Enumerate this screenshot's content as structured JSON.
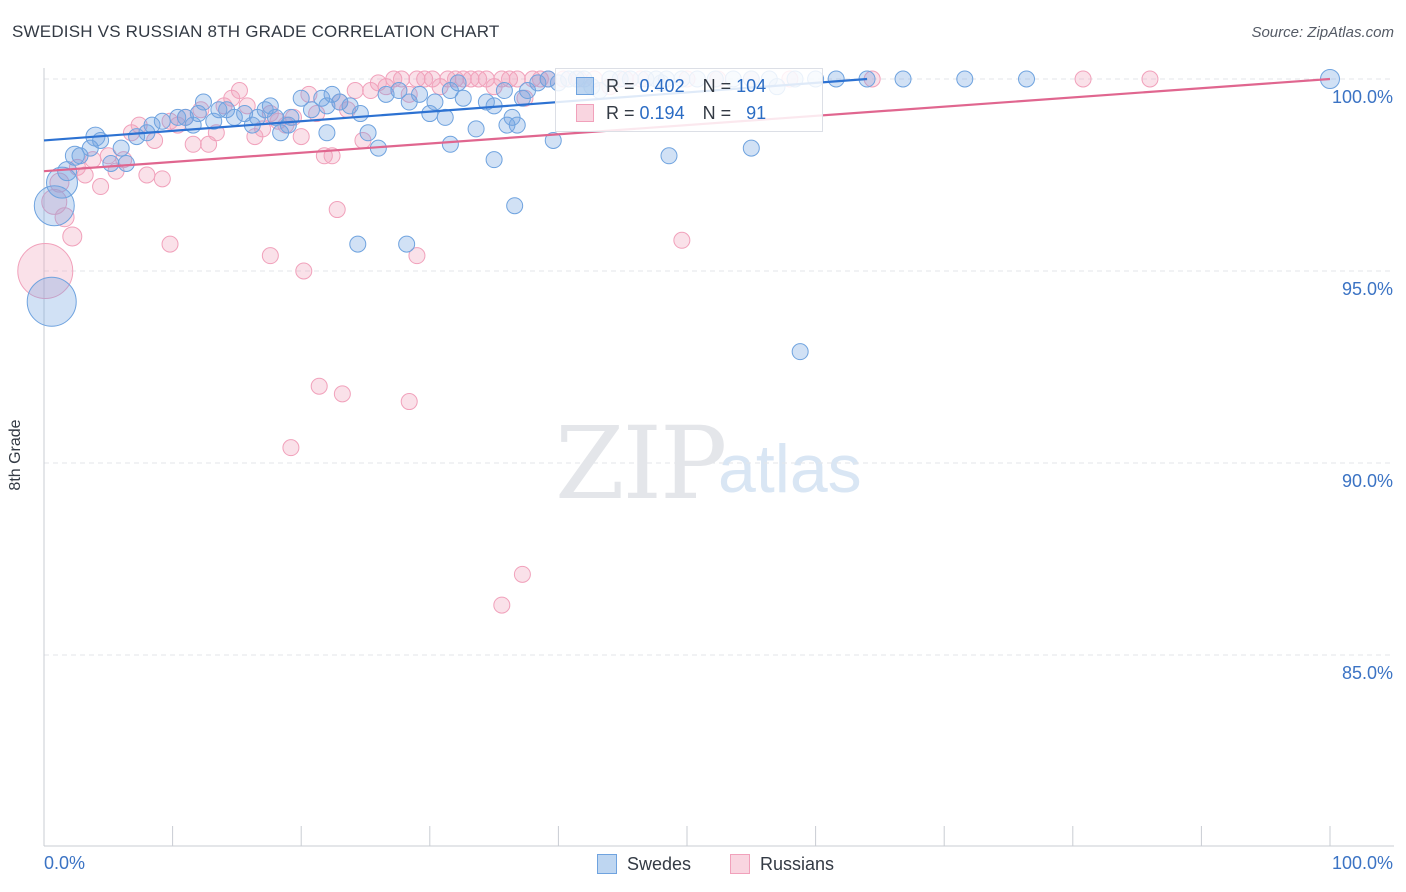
{
  "title": "SWEDISH VS RUSSIAN 8TH GRADE CORRELATION CHART",
  "source": "Source: ZipAtlas.com",
  "watermark": {
    "zip": "ZIP",
    "atlas": "atlas"
  },
  "colors": {
    "swedes": "#6fa3df",
    "russians": "#f1a1bb",
    "swedes_line": "#2d72d2",
    "russians_line": "#e0668f",
    "tick_label": "#3b73c4",
    "grid": "#e3e5ea"
  },
  "legend": {
    "swedes": {
      "r_label": "R =",
      "r_value": "0.402",
      "n_label": "N =",
      "n_value": "104"
    },
    "russians": {
      "r_label": "R =",
      "r_value": "0.194",
      "n_label": "N =",
      "n_value": "91"
    }
  },
  "bottom_legend": {
    "swedes": "Swedes",
    "russians": "Russians"
  },
  "chart_data": {
    "type": "scatter",
    "title": "SWEDISH VS RUSSIAN 8TH GRADE CORRELATION CHART",
    "xlabel": "",
    "ylabel": "8th Grade",
    "xlim": [
      0,
      100
    ],
    "ylim": [
      80.5,
      100.7
    ],
    "x_tick_labels": [
      "0.0%",
      "100.0%"
    ],
    "y_ticks": [
      100,
      95,
      90,
      85
    ],
    "y_tick_labels": [
      "100.0%",
      "95.0%",
      "90.0%",
      "85.0%"
    ],
    "grid": true,
    "legend_position": "top-center",
    "series": [
      {
        "name": "Swedes",
        "trend": [
          [
            0,
            98.4
          ],
          [
            64,
            100.0
          ]
        ],
        "points": [
          [
            0.6,
            94.2,
            1
          ],
          [
            0.8,
            96.7,
            0.85
          ],
          [
            1.4,
            97.3,
            0.7
          ],
          [
            1.8,
            97.6,
            0.5
          ],
          [
            2.4,
            98.0,
            0.5
          ],
          [
            2.8,
            98.0,
            0.45
          ],
          [
            3.6,
            98.2,
            0.45
          ],
          [
            4.0,
            98.5,
            0.5
          ],
          [
            4.4,
            98.4,
            0.45
          ],
          [
            5.2,
            97.8,
            0.45
          ],
          [
            6.0,
            98.2,
            0.45
          ],
          [
            6.4,
            97.8,
            0.45
          ],
          [
            7.2,
            98.5,
            0.45
          ],
          [
            8.0,
            98.6,
            0.45
          ],
          [
            8.4,
            98.8,
            0.45
          ],
          [
            9.2,
            98.9,
            0.45
          ],
          [
            10.4,
            99.0,
            0.45
          ],
          [
            11.0,
            99.0,
            0.45
          ],
          [
            11.6,
            98.8,
            0.45
          ],
          [
            12.0,
            99.1,
            0.45
          ],
          [
            12.4,
            99.4,
            0.45
          ],
          [
            13.2,
            98.9,
            0.45
          ],
          [
            13.6,
            99.2,
            0.45
          ],
          [
            14.2,
            99.2,
            0.45
          ],
          [
            14.8,
            99.0,
            0.45
          ],
          [
            15.6,
            99.1,
            0.45
          ],
          [
            16.2,
            98.8,
            0.45
          ],
          [
            16.6,
            99.0,
            0.45
          ],
          [
            17.2,
            99.2,
            0.45
          ],
          [
            17.6,
            99.3,
            0.45
          ],
          [
            18.0,
            99.0,
            0.45
          ],
          [
            18.4,
            98.6,
            0.45
          ],
          [
            19.2,
            99.0,
            0.45
          ],
          [
            20.0,
            99.5,
            0.45
          ],
          [
            20.8,
            99.2,
            0.45
          ],
          [
            21.6,
            99.5,
            0.45
          ],
          [
            22.0,
            99.3,
            0.45
          ],
          [
            22.4,
            99.6,
            0.45
          ],
          [
            23.0,
            99.4,
            0.45
          ],
          [
            23.8,
            99.3,
            0.45
          ],
          [
            24.6,
            99.1,
            0.45
          ],
          [
            25.2,
            98.6,
            0.45
          ],
          [
            26.6,
            99.6,
            0.45
          ],
          [
            27.6,
            99.7,
            0.45
          ],
          [
            28.4,
            99.4,
            0.45
          ],
          [
            29.2,
            99.6,
            0.45
          ],
          [
            30.4,
            99.4,
            0.45
          ],
          [
            31.2,
            99.0,
            0.45
          ],
          [
            31.6,
            99.7,
            0.45
          ],
          [
            32.2,
            99.9,
            0.45
          ],
          [
            32.6,
            99.5,
            0.45
          ],
          [
            33.6,
            98.7,
            0.45
          ],
          [
            34.4,
            99.4,
            0.45
          ],
          [
            35.0,
            99.3,
            0.45
          ],
          [
            35.8,
            99.7,
            0.45
          ],
          [
            36.4,
            99.0,
            0.45
          ],
          [
            36.8,
            98.8,
            0.45
          ],
          [
            37.2,
            99.5,
            0.45
          ],
          [
            37.6,
            99.7,
            0.45
          ],
          [
            38.4,
            99.9,
            0.45
          ],
          [
            39.2,
            100.0,
            0.45
          ],
          [
            40.0,
            99.9,
            0.45
          ],
          [
            40.8,
            100.0,
            0.45
          ],
          [
            41.4,
            100.0,
            0.45
          ],
          [
            42.0,
            100.0,
            0.45
          ],
          [
            42.6,
            99.8,
            0.45
          ],
          [
            43.2,
            99.7,
            0.45
          ],
          [
            44.0,
            100.0,
            0.45
          ],
          [
            44.8,
            100.0,
            0.45
          ],
          [
            45.6,
            100.0,
            0.45
          ],
          [
            46.8,
            100.0,
            0.45
          ],
          [
            47.6,
            100.0,
            0.45
          ],
          [
            48.0,
            99.9,
            0.45
          ],
          [
            48.4,
            100.0,
            0.45
          ],
          [
            49.6,
            100.0,
            0.45
          ],
          [
            50.8,
            100.0,
            0.45
          ],
          [
            52.2,
            100.0,
            0.45
          ],
          [
            53.6,
            100.0,
            0.45
          ],
          [
            55.0,
            100.0,
            0.45
          ],
          [
            56.4,
            100.0,
            0.45
          ],
          [
            57.0,
            99.8,
            0.45
          ],
          [
            58.4,
            100.0,
            0.45
          ],
          [
            60.0,
            100.0,
            0.45
          ],
          [
            61.6,
            100.0,
            0.45
          ],
          [
            64.0,
            100.0,
            0.45
          ],
          [
            66.8,
            100.0,
            0.45
          ],
          [
            71.6,
            100.0,
            0.45
          ],
          [
            76.4,
            100.0,
            0.45
          ],
          [
            100.0,
            100.0,
            0.5
          ],
          [
            36.0,
            98.8,
            0.45
          ],
          [
            31.6,
            98.3,
            0.45
          ],
          [
            35.0,
            97.9,
            0.45
          ],
          [
            22.0,
            98.6,
            0.45
          ],
          [
            24.4,
            95.7,
            0.45
          ],
          [
            28.2,
            95.7,
            0.45
          ],
          [
            36.6,
            96.7,
            0.45
          ],
          [
            39.6,
            98.4,
            0.45
          ],
          [
            48.6,
            98.0,
            0.45
          ],
          [
            55.0,
            98.2,
            0.45
          ],
          [
            58.8,
            92.9,
            0.45
          ],
          [
            19.0,
            98.8,
            0.45
          ],
          [
            26.0,
            98.2,
            0.45
          ],
          [
            30.0,
            99.1,
            0.45
          ]
        ]
      },
      {
        "name": "Russians",
        "trend": [
          [
            0,
            97.6
          ],
          [
            100,
            100.0
          ]
        ],
        "points": [
          [
            0.1,
            95.0,
            1.1
          ],
          [
            0.8,
            96.8,
            0.6
          ],
          [
            1.6,
            96.4,
            0.5
          ],
          [
            2.2,
            95.9,
            0.5
          ],
          [
            1.2,
            97.3,
            0.5
          ],
          [
            2.6,
            97.7,
            0.45
          ],
          [
            3.2,
            97.5,
            0.45
          ],
          [
            3.8,
            97.9,
            0.45
          ],
          [
            4.4,
            97.2,
            0.45
          ],
          [
            5.0,
            98.0,
            0.45
          ],
          [
            5.6,
            97.6,
            0.45
          ],
          [
            6.2,
            97.9,
            0.45
          ],
          [
            6.8,
            98.6,
            0.45
          ],
          [
            7.4,
            98.8,
            0.45
          ],
          [
            8.0,
            97.5,
            0.45
          ],
          [
            8.6,
            98.4,
            0.45
          ],
          [
            9.2,
            97.4,
            0.45
          ],
          [
            9.8,
            98.9,
            0.45
          ],
          [
            10.4,
            98.8,
            0.45
          ],
          [
            11.0,
            99.0,
            0.45
          ],
          [
            11.6,
            98.3,
            0.45
          ],
          [
            12.2,
            99.2,
            0.45
          ],
          [
            12.8,
            98.3,
            0.45
          ],
          [
            13.4,
            98.6,
            0.45
          ],
          [
            14.0,
            99.3,
            0.45
          ],
          [
            14.6,
            99.5,
            0.45
          ],
          [
            15.2,
            99.7,
            0.45
          ],
          [
            15.8,
            99.3,
            0.45
          ],
          [
            16.4,
            98.5,
            0.45
          ],
          [
            17.0,
            98.7,
            0.45
          ],
          [
            17.6,
            99.1,
            0.45
          ],
          [
            18.2,
            98.9,
            0.45
          ],
          [
            18.8,
            98.8,
            0.45
          ],
          [
            19.4,
            99.0,
            0.45
          ],
          [
            20.0,
            98.5,
            0.45
          ],
          [
            20.6,
            99.6,
            0.45
          ],
          [
            21.2,
            99.1,
            0.45
          ],
          [
            21.8,
            98.0,
            0.45
          ],
          [
            22.4,
            98.0,
            0.45
          ],
          [
            23.0,
            99.4,
            0.45
          ],
          [
            23.6,
            99.2,
            0.45
          ],
          [
            24.2,
            99.7,
            0.45
          ],
          [
            24.8,
            98.4,
            0.45
          ],
          [
            25.4,
            99.7,
            0.45
          ],
          [
            26.0,
            99.9,
            0.45
          ],
          [
            26.6,
            99.8,
            0.45
          ],
          [
            27.2,
            100.0,
            0.45
          ],
          [
            27.8,
            100.0,
            0.45
          ],
          [
            28.4,
            99.6,
            0.45
          ],
          [
            29.0,
            100.0,
            0.45
          ],
          [
            29.6,
            100.0,
            0.45
          ],
          [
            30.2,
            100.0,
            0.45
          ],
          [
            30.8,
            99.8,
            0.45
          ],
          [
            31.4,
            100.0,
            0.45
          ],
          [
            32.0,
            100.0,
            0.45
          ],
          [
            32.6,
            100.0,
            0.45
          ],
          [
            33.2,
            100.0,
            0.45
          ],
          [
            33.8,
            100.0,
            0.45
          ],
          [
            34.4,
            100.0,
            0.45
          ],
          [
            35.0,
            99.8,
            0.45
          ],
          [
            35.6,
            100.0,
            0.45
          ],
          [
            36.2,
            100.0,
            0.45
          ],
          [
            36.8,
            100.0,
            0.45
          ],
          [
            37.4,
            99.5,
            0.45
          ],
          [
            38.0,
            100.0,
            0.45
          ],
          [
            38.6,
            100.0,
            0.45
          ],
          [
            39.2,
            100.0,
            0.45
          ],
          [
            40.4,
            100.0,
            0.45
          ],
          [
            41.6,
            100.0,
            0.45
          ],
          [
            42.8,
            100.0,
            0.45
          ],
          [
            44.0,
            99.8,
            0.45
          ],
          [
            45.2,
            100.0,
            0.45
          ],
          [
            46.4,
            100.0,
            0.45
          ],
          [
            50.0,
            100.0,
            0.45
          ],
          [
            52.4,
            100.0,
            0.45
          ],
          [
            55.0,
            100.0,
            0.45
          ],
          [
            58.0,
            100.0,
            0.45
          ],
          [
            64.4,
            100.0,
            0.45
          ],
          [
            80.8,
            100.0,
            0.45
          ],
          [
            86.0,
            100.0,
            0.45
          ],
          [
            9.8,
            95.7,
            0.45
          ],
          [
            17.6,
            95.4,
            0.45
          ],
          [
            20.2,
            95.0,
            0.45
          ],
          [
            22.8,
            96.6,
            0.45
          ],
          [
            29.0,
            95.4,
            0.45
          ],
          [
            49.6,
            95.8,
            0.45
          ],
          [
            21.4,
            92.0,
            0.45
          ],
          [
            23.2,
            91.8,
            0.45
          ],
          [
            28.4,
            91.6,
            0.45
          ],
          [
            19.2,
            90.4,
            0.45
          ],
          [
            37.2,
            87.1,
            0.45
          ],
          [
            35.6,
            86.3,
            0.45
          ]
        ]
      }
    ]
  }
}
